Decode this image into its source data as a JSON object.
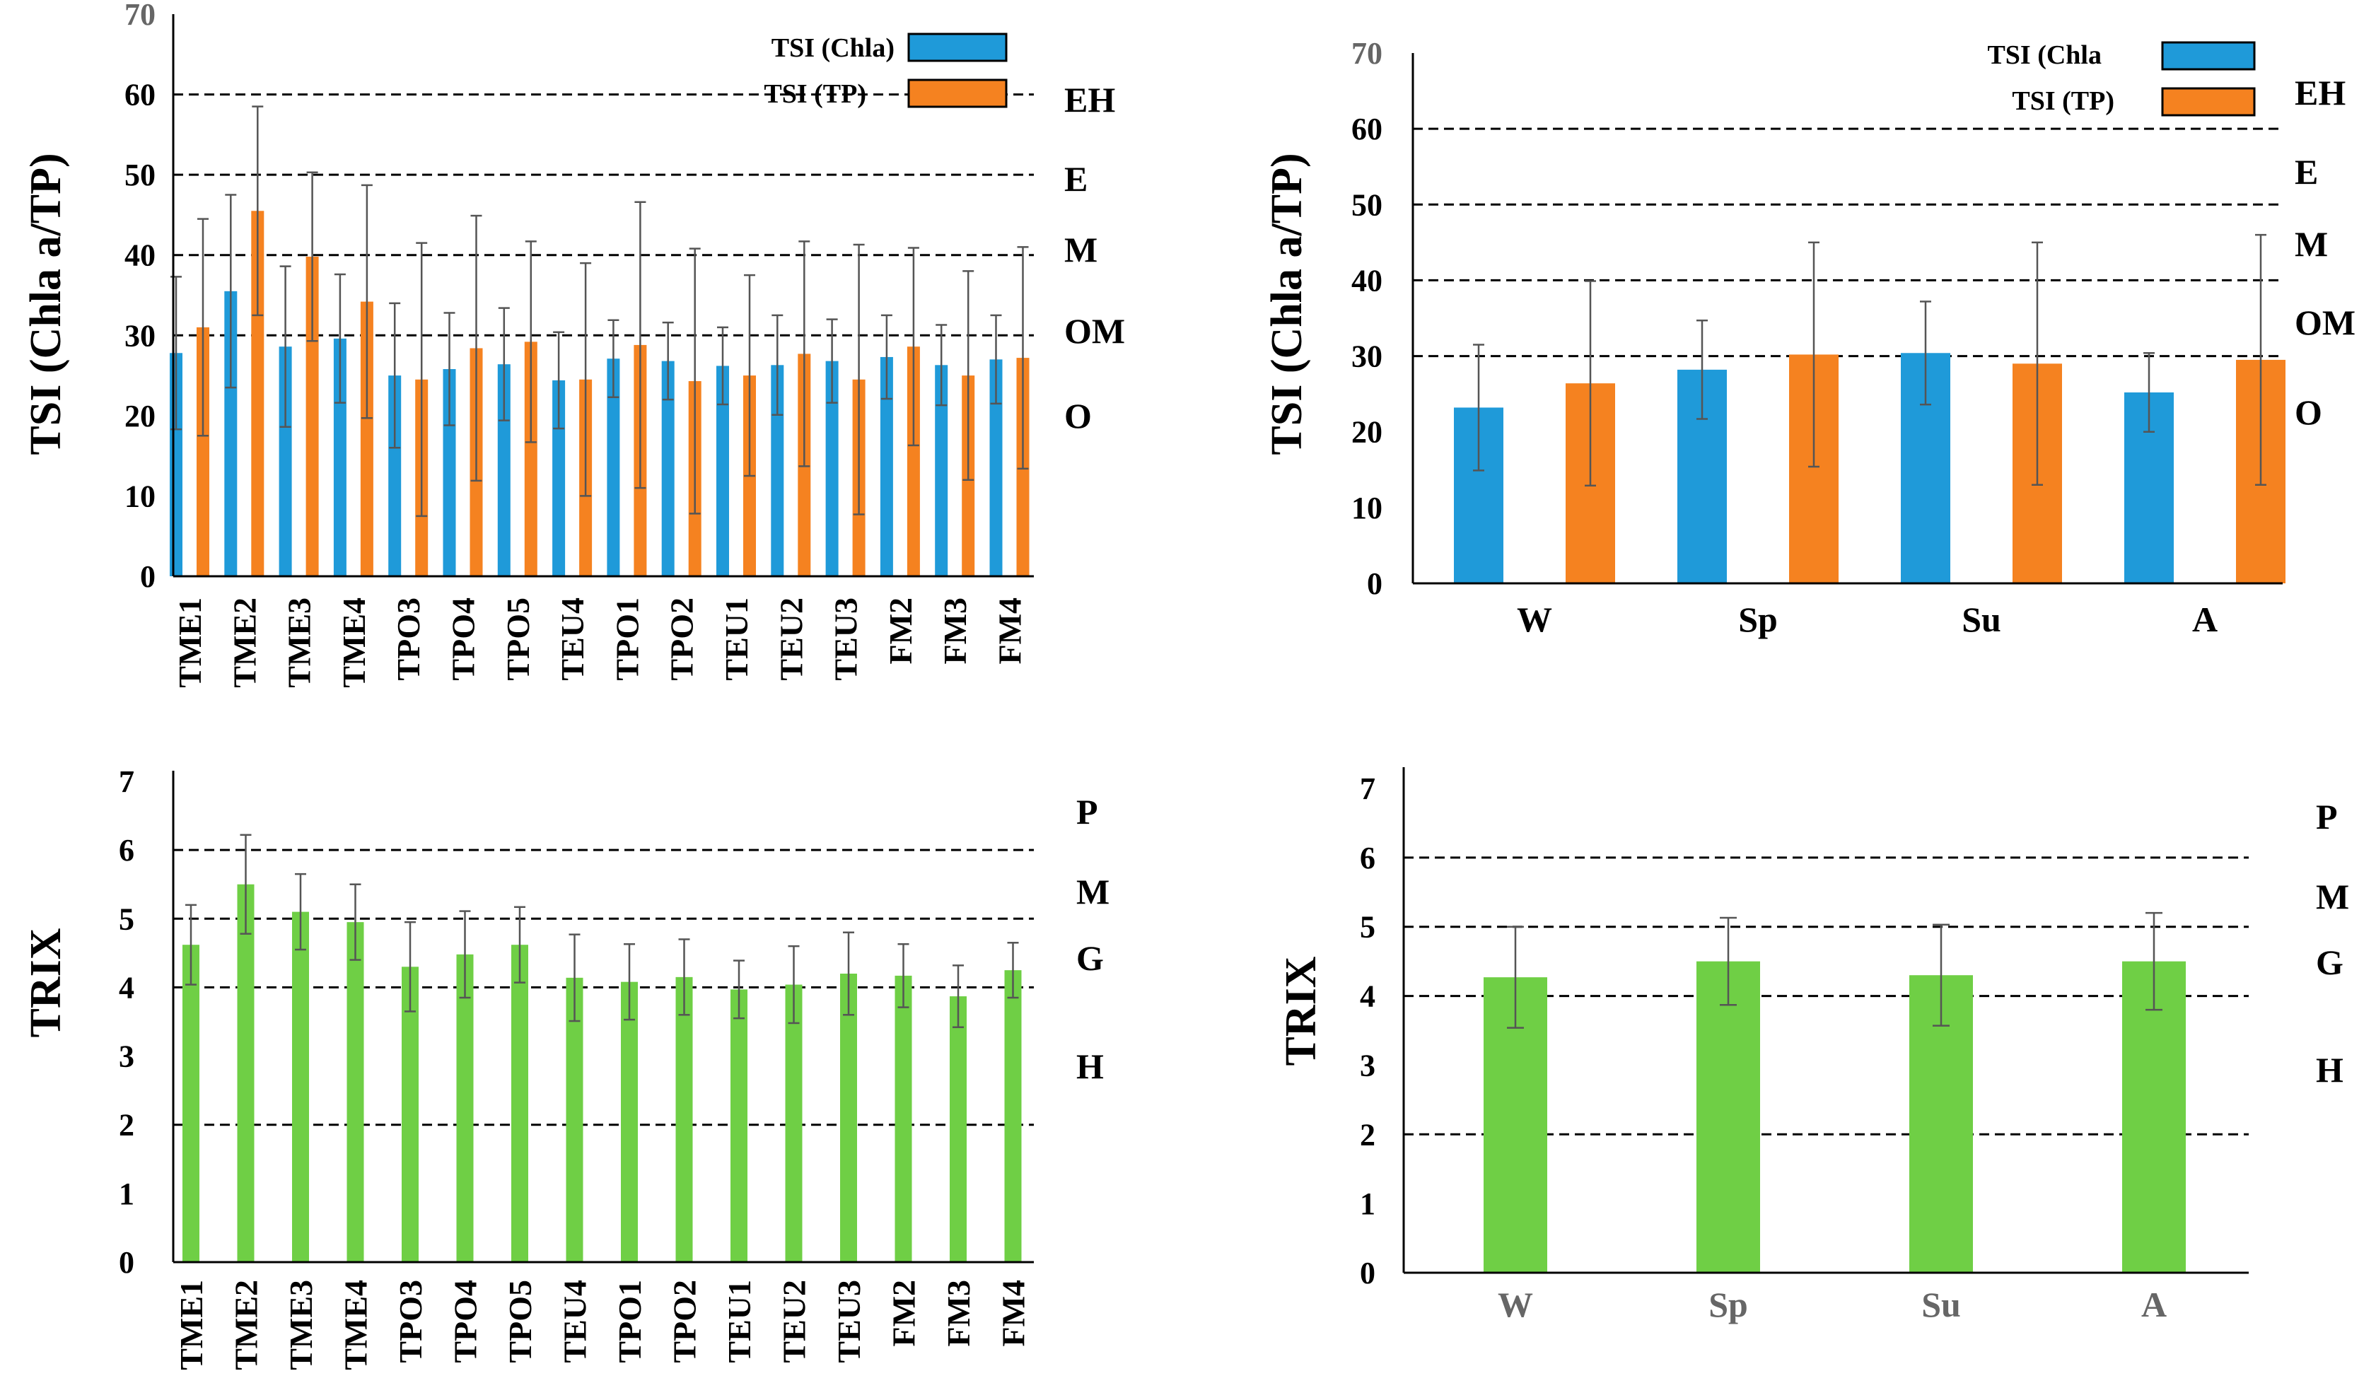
{
  "colors": {
    "chla": "#1f9ad9",
    "tp": "#f58220",
    "trix": "#6fcf45",
    "error": "#555555"
  },
  "chart_data": [
    {
      "type": "bar",
      "panel": "top-left",
      "ylabel": "TSI (Chla a/TP)",
      "ylim": [
        0,
        70
      ],
      "yticks": [
        "0",
        "10",
        "20",
        "30",
        "40",
        "50",
        "60",
        "70"
      ],
      "categories": [
        "TME1",
        "TME2",
        "TME3",
        "TME4",
        "TPO3",
        "TPO4",
        "TPO5",
        "TEU4",
        "TPO1",
        "TPO2",
        "TEU1",
        "TEU2",
        "TEU3",
        "FM2",
        "FM3",
        "FM4"
      ],
      "series": [
        {
          "name": "TSI (Chla)",
          "color": "#1f9ad9",
          "values": [
            27.8,
            35.5,
            28.6,
            29.6,
            25.0,
            25.8,
            26.4,
            24.4,
            27.1,
            26.8,
            26.2,
            26.3,
            26.8,
            27.3,
            26.3,
            27.0
          ],
          "err": [
            9.5,
            12.0,
            10.0,
            8.0,
            9.0,
            7.0,
            7.0,
            6.0,
            4.8,
            4.8,
            4.8,
            6.2,
            5.2,
            5.2,
            5.0,
            5.5
          ]
        },
        {
          "name": "TSI (TP)",
          "color": "#f58220",
          "values": [
            31.0,
            45.5,
            39.8,
            34.2,
            24.5,
            28.4,
            29.2,
            24.5,
            28.8,
            24.3,
            25.0,
            27.7,
            24.5,
            28.6,
            25.0,
            27.2
          ],
          "err": [
            13.5,
            13.0,
            10.5,
            14.5,
            17.0,
            16.5,
            12.5,
            14.5,
            17.8,
            16.5,
            12.5,
            14.0,
            16.8,
            12.3,
            13.0,
            13.8
          ]
        }
      ],
      "thresholds": [
        30,
        40,
        50,
        60
      ],
      "zones": [
        "EH",
        "E",
        "M",
        "OM",
        "O"
      ],
      "legend": [
        "TSI (Chla)",
        "TSI (TP)"
      ],
      "legend_position": "top-right"
    },
    {
      "type": "bar",
      "panel": "top-right",
      "ylabel": "TSI (Chla a/TP)",
      "ylim": [
        0,
        70
      ],
      "yticks": [
        "0",
        "10",
        "20",
        "30",
        "40",
        "50",
        "60",
        "70"
      ],
      "categories": [
        "W",
        "Sp",
        "Su",
        "A"
      ],
      "series": [
        {
          "name": "TSI (Chla)",
          "color": "#1f9ad9",
          "values": [
            23.2,
            28.2,
            30.4,
            25.2
          ],
          "err": [
            8.3,
            6.5,
            6.8,
            5.2
          ]
        },
        {
          "name": "TSI (TP)",
          "color": "#f58220",
          "values": [
            26.4,
            30.2,
            29.0,
            29.5
          ],
          "err": [
            13.5,
            14.8,
            16.0,
            16.5
          ]
        }
      ],
      "thresholds": [
        30,
        40,
        50,
        60
      ],
      "zones": [
        "EH",
        "E",
        "M",
        "OM",
        "O"
      ],
      "legend": [
        "TSI (Chla",
        "TSI (TP)"
      ],
      "legend_position": "top-right"
    },
    {
      "type": "bar",
      "panel": "bottom-left",
      "ylabel": "TRIX",
      "ylim": [
        0,
        7
      ],
      "yticks": [
        "0",
        "1",
        "2",
        "3",
        "4",
        "5",
        "6",
        "7"
      ],
      "categories": [
        "TME1",
        "TME2",
        "TME3",
        "TME4",
        "TPO3",
        "TPO4",
        "TPO5",
        "TEU4",
        "TPO1",
        "TPO2",
        "TEU1",
        "TEU2",
        "TEU3",
        "FM2",
        "FM3",
        "FM4"
      ],
      "series": [
        {
          "name": "TRIX",
          "color": "#6fcf45",
          "values": [
            4.62,
            5.5,
            5.1,
            4.95,
            4.3,
            4.48,
            4.62,
            4.14,
            4.08,
            4.15,
            3.97,
            4.04,
            4.2,
            4.17,
            3.87,
            4.25
          ],
          "err": [
            0.58,
            0.72,
            0.55,
            0.55,
            0.65,
            0.63,
            0.55,
            0.63,
            0.55,
            0.55,
            0.42,
            0.56,
            0.6,
            0.46,
            0.45,
            0.4
          ]
        }
      ],
      "thresholds": [
        2,
        4,
        5,
        6
      ],
      "zones": [
        "P",
        "M",
        "G",
        "H"
      ]
    },
    {
      "type": "bar",
      "panel": "bottom-right",
      "ylabel": "TRIX",
      "ylim": [
        0,
        7
      ],
      "yticks": [
        "0",
        "1",
        "2",
        "3",
        "4",
        "5",
        "6",
        "7"
      ],
      "categories": [
        "W",
        "Sp",
        "Su",
        "A"
      ],
      "series": [
        {
          "name": "TRIX",
          "color": "#6fcf45",
          "values": [
            4.27,
            4.5,
            4.3,
            4.5
          ],
          "err": [
            0.73,
            0.63,
            0.73,
            0.7
          ]
        }
      ],
      "thresholds": [
        2,
        4,
        5,
        6
      ],
      "zones": [
        "P",
        "M",
        "G",
        "H"
      ]
    }
  ]
}
